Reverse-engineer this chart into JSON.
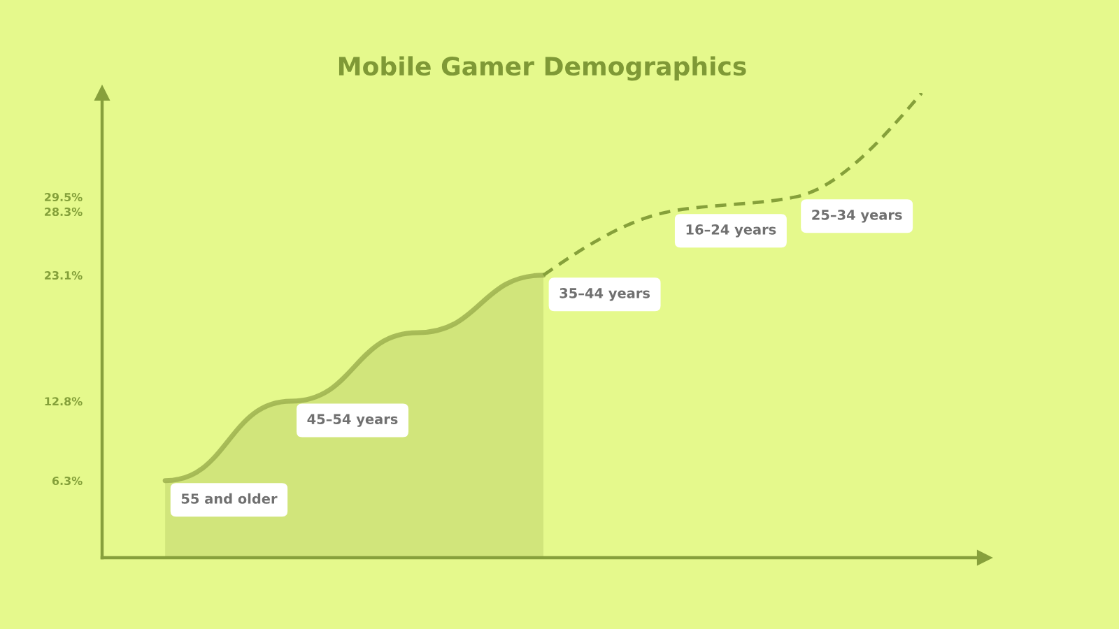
{
  "chart_data": {
    "type": "line",
    "title": "Mobile Gamer Demographics",
    "categories": [
      null,
      null,
      null,
      null,
      null,
      null,
      null
    ],
    "series": [
      {
        "type": "area",
        "color": "#9db24f",
        "values": [
          6.3,
          12.8,
          18.4,
          23.1,
          null,
          null,
          null
        ]
      },
      {
        "line_style": "dashed",
        "color": "#86a03a",
        "values": [
          null,
          null,
          null,
          23.1,
          28.3,
          29.5,
          38
        ]
      }
    ],
    "ylim": [
      0,
      38
    ],
    "yticks": [
      {
        "value": 6.3,
        "label": "6.3%"
      },
      {
        "value": 12.8,
        "label": "12.8%"
      },
      {
        "value": 23.1,
        "label": "23.1%"
      },
      {
        "value": 28.3,
        "label": "28.3%"
      },
      {
        "value": 29.5,
        "label": "29.5%"
      }
    ],
    "tick_labels": "y",
    "annotations": [
      "55 and older",
      "45–54 years",
      "35–44 years",
      "16–24 years",
      "25–34 years"
    ]
  }
}
